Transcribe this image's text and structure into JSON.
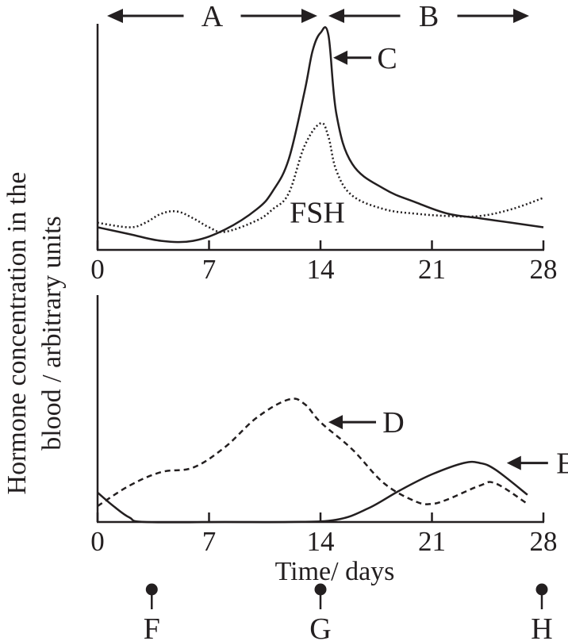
{
  "figure": {
    "ylabel_line1": "Hormone concentration in the",
    "ylabel_line2": "blood / arbitrary units",
    "xlabel": "Time/ days"
  },
  "phases": [
    {
      "label": "A",
      "from": 0,
      "to": 14
    },
    {
      "label": "B",
      "from": 14,
      "to": 28
    }
  ],
  "markers": [
    {
      "label": "F",
      "day": 4
    },
    {
      "label": "G",
      "day": 14
    },
    {
      "label": "H",
      "day": 28
    }
  ],
  "chart_data": [
    {
      "type": "line",
      "x_ticks": [
        "0",
        "7",
        "14",
        "21",
        "28"
      ],
      "xlim": [
        0,
        28
      ],
      "ylim": [
        0,
        100
      ],
      "series": [
        {
          "name": "C",
          "style": "solid",
          "x": [
            0,
            2,
            4,
            6,
            8,
            10,
            11,
            12,
            13,
            13.5,
            14,
            14.5,
            15,
            16,
            18,
            20,
            22,
            24,
            26,
            28
          ],
          "y": [
            10,
            7,
            4,
            4,
            9,
            18,
            26,
            40,
            70,
            88,
            96,
            95,
            60,
            38,
            27,
            21,
            16,
            14,
            12,
            10
          ]
        },
        {
          "name": "FSH",
          "style": "dotted",
          "x": [
            0,
            2,
            3,
            4,
            5,
            6,
            7,
            8,
            10,
            11,
            12,
            13,
            14,
            14.5,
            15,
            16,
            18,
            20,
            22,
            24,
            26,
            28
          ],
          "y": [
            12,
            10,
            12,
            16,
            17,
            14,
            10,
            8,
            13,
            18,
            25,
            46,
            56,
            50,
            35,
            24,
            18,
            16,
            15,
            15,
            18,
            23
          ]
        }
      ]
    },
    {
      "type": "line",
      "x_ticks": [
        "0",
        "7",
        "14",
        "21",
        "28"
      ],
      "xlim": [
        0,
        28
      ],
      "ylim": [
        0,
        100
      ],
      "series": [
        {
          "name": "D",
          "style": "dashed",
          "x": [
            0,
            2,
            4,
            6,
            8,
            10,
            12,
            13,
            14,
            16,
            18,
            20,
            21,
            22,
            24,
            25,
            27
          ],
          "y": [
            7,
            16,
            22,
            24,
            33,
            46,
            54,
            52,
            44,
            32,
            17,
            9,
            8,
            10,
            16,
            17,
            8
          ]
        },
        {
          "name": "E",
          "style": "solid",
          "x": [
            0,
            1,
            2,
            3,
            8,
            12,
            15,
            17,
            19,
            21,
            23,
            24,
            25,
            27
          ],
          "y": [
            13,
            7,
            2,
            0,
            0,
            0,
            1,
            6,
            14,
            21,
            26,
            26,
            23,
            12
          ]
        }
      ]
    }
  ]
}
